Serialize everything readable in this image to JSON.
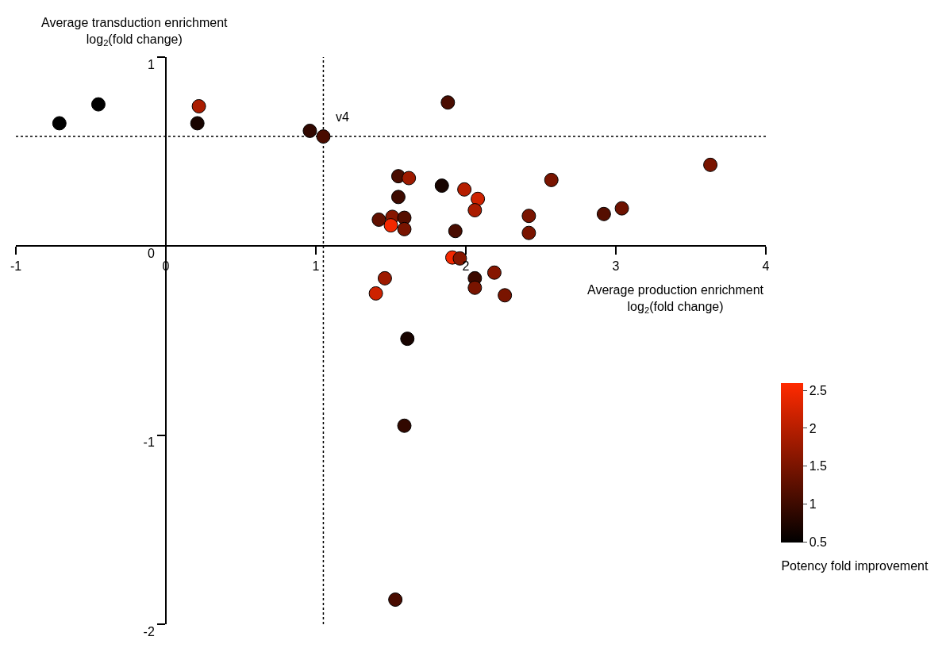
{
  "chart_data": {
    "type": "scatter",
    "xlabel": "Average production enrichment\nlog$_{2}$(fold change)",
    "ylabel": "Average transduction enrichment\nlog$_{2}$(fold change)",
    "clabel": "Potency fold improvement",
    "x": [
      -0.71,
      -0.45,
      0.22,
      0.21,
      0.96,
      1.05,
      1.88,
      3.63,
      2.57,
      1.55,
      1.62,
      1.84,
      1.99,
      2.08,
      1.55,
      2.06,
      1.42,
      1.51,
      1.59,
      1.5,
      1.59,
      1.93,
      2.42,
      2.42,
      2.92,
      3.04,
      1.91,
      1.96,
      2.06,
      2.06,
      2.19,
      2.26,
      1.46,
      1.4,
      1.61,
      1.59,
      1.53
    ],
    "values": [
      0.65,
      0.75,
      0.74,
      0.65,
      0.61,
      0.58,
      0.76,
      0.43,
      0.35,
      0.37,
      0.36,
      0.32,
      0.3,
      0.25,
      0.26,
      0.19,
      0.14,
      0.155,
      0.15,
      0.11,
      0.09,
      0.08,
      0.16,
      0.07,
      0.17,
      0.2,
      -0.06,
      -0.065,
      -0.17,
      -0.22,
      -0.14,
      -0.26,
      -0.17,
      -0.25,
      -0.49,
      -0.95,
      -1.87
    ],
    "cvalues": [
      0.5,
      0.5,
      1.9,
      0.7,
      0.9,
      1.1,
      1.1,
      1.5,
      1.5,
      1.1,
      1.8,
      0.7,
      2.0,
      2.2,
      1.0,
      1.9,
      1.3,
      1.6,
      1.2,
      2.5,
      1.5,
      1.1,
      1.5,
      1.5,
      1.2,
      1.4,
      2.5,
      1.6,
      1.0,
      1.5,
      1.6,
      1.5,
      1.8,
      2.2,
      0.7,
      0.9,
      1.1
    ],
    "clim": [
      0.5,
      2.6
    ],
    "cticks": [
      0.5,
      1,
      1.5,
      2,
      2.5
    ],
    "xlim": [
      -1,
      4
    ],
    "xticks": [
      -1,
      0,
      1,
      2,
      3,
      4
    ],
    "ylim": [
      -2,
      1
    ],
    "yticks": [
      -2,
      -1,
      0,
      1
    ],
    "marker": "circle",
    "grid": false,
    "legend": false,
    "ref_lines": [
      {
        "axis": "x",
        "value": 1.05,
        "label": null,
        "line_style": "dotted"
      },
      {
        "axis": "y",
        "value": 0.58,
        "label": null,
        "line_style": "dotted"
      }
    ],
    "annotations": [
      {
        "text": "v4",
        "x": 1.05,
        "y": 0.58
      }
    ]
  }
}
